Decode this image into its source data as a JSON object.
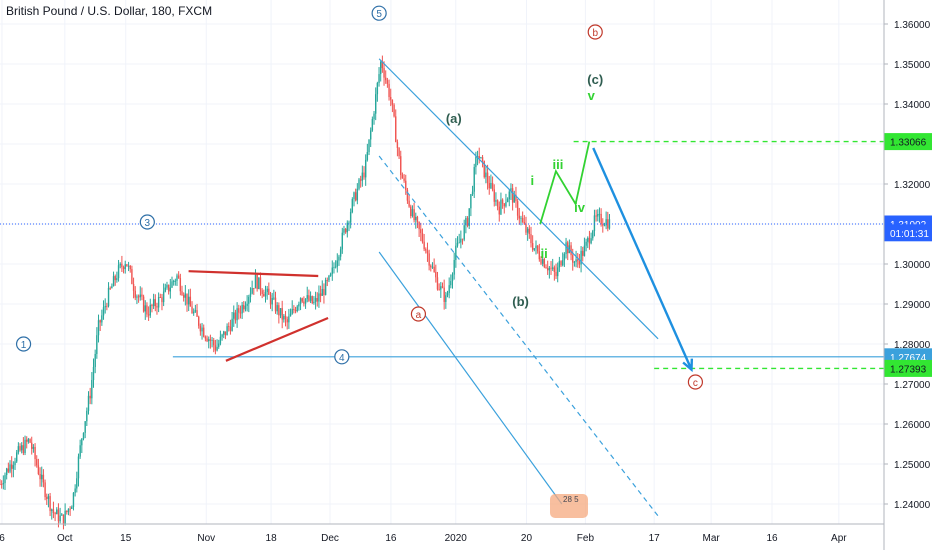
{
  "header": {
    "title": "British Pound / U.S. Dollar, 180, FXCM"
  },
  "chart_data": {
    "type": "candlestick",
    "price_axis": {
      "range": [
        1.235,
        1.366
      ],
      "ticks": [
        "1.36000",
        "1.35000",
        "1.34000",
        "1.33000",
        "1.32000",
        "1.31000",
        "1.30000",
        "1.29000",
        "1.28000",
        "1.27000",
        "1.26000",
        "1.25000",
        "1.24000"
      ]
    },
    "time_axis": {
      "labels": [
        "6",
        "Oct",
        "15",
        "Nov",
        "18",
        "Dec",
        "16",
        "2020",
        "20",
        "Feb",
        "17",
        "Mar",
        "16",
        "Apr"
      ]
    },
    "price_labels": {
      "current_price": "1.31002",
      "countdown": "01:01:31",
      "level_upper": "1.33066",
      "level_horizontal": "1.27674",
      "level_lower": "1.27393"
    },
    "price_path": [
      [
        0,
        1.245
      ],
      [
        0.3,
        1.248
      ],
      [
        0.8,
        1.252
      ],
      [
        1.5,
        1.256
      ],
      [
        2.1,
        1.246
      ],
      [
        2.7,
        1.238
      ],
      [
        3.2,
        1.236
      ],
      [
        3.7,
        1.241
      ],
      [
        4.2,
        1.258
      ],
      [
        4.6,
        1.268
      ],
      [
        5.0,
        1.284
      ],
      [
        5.5,
        1.292
      ],
      [
        6.0,
        1.298
      ],
      [
        6.4,
        1.301
      ],
      [
        6.9,
        1.293
      ],
      [
        7.5,
        1.288
      ],
      [
        8.3,
        1.292
      ],
      [
        9.0,
        1.297
      ],
      [
        9.7,
        1.289
      ],
      [
        10.4,
        1.283
      ],
      [
        11.0,
        1.279
      ],
      [
        11.6,
        1.284
      ],
      [
        12.4,
        1.29
      ],
      [
        13.0,
        1.296
      ],
      [
        13.8,
        1.291
      ],
      [
        14.6,
        1.285
      ],
      [
        15.3,
        1.292
      ],
      [
        16.0,
        1.29
      ],
      [
        16.8,
        1.296
      ],
      [
        17.4,
        1.306
      ],
      [
        18.0,
        1.316
      ],
      [
        18.6,
        1.324
      ],
      [
        19.4,
        1.351
      ],
      [
        19.9,
        1.341
      ],
      [
        20.4,
        1.323
      ],
      [
        21.0,
        1.312
      ],
      [
        21.6,
        1.305
      ],
      [
        22.2,
        1.296
      ],
      [
        22.7,
        1.291
      ],
      [
        23.2,
        1.303
      ],
      [
        23.8,
        1.311
      ],
      [
        24.3,
        1.328
      ],
      [
        24.8,
        1.321
      ],
      [
        25.4,
        1.314
      ],
      [
        26.0,
        1.318
      ],
      [
        26.6,
        1.31
      ],
      [
        27.2,
        1.304
      ],
      [
        27.8,
        1.3
      ],
      [
        28.3,
        1.297
      ],
      [
        28.8,
        1.305
      ],
      [
        29.3,
        1.3
      ],
      [
        29.8,
        1.304
      ],
      [
        30.3,
        1.311
      ],
      [
        30.8,
        1.311
      ],
      [
        31.1,
        1.31
      ]
    ],
    "annotations": [
      {
        "text": "1",
        "t": 1.2,
        "p": 1.28,
        "style": "circle-blue"
      },
      {
        "text": "3",
        "t": 7.5,
        "p": 1.3105,
        "style": "circle-blue"
      },
      {
        "text": "4",
        "t": 17.4,
        "p": 1.2768,
        "style": "circle-blue"
      },
      {
        "text": "5",
        "t": 19.3,
        "p": 1.3627,
        "style": "circle-blue"
      },
      {
        "text": "a",
        "t": 21.3,
        "p": 1.2875,
        "style": "circle-red"
      },
      {
        "text": "b",
        "t": 30.3,
        "p": 1.358,
        "style": "circle-red"
      },
      {
        "text": "c",
        "t": 35.4,
        "p": 1.2705,
        "style": "circle-red"
      },
      {
        "text": "(a)",
        "t": 23.1,
        "p": 1.3362,
        "style": "text-darkgreen"
      },
      {
        "text": "(b)",
        "t": 26.5,
        "p": 1.2905,
        "style": "text-darkgreen"
      },
      {
        "text": "(c)",
        "t": 30.3,
        "p": 1.346,
        "style": "text-darkgreen"
      },
      {
        "text": "i",
        "t": 27.1,
        "p": 1.3208,
        "style": "text-green"
      },
      {
        "text": "ii",
        "t": 27.7,
        "p": 1.3025,
        "style": "text-green"
      },
      {
        "text": "iii",
        "t": 28.4,
        "p": 1.3248,
        "style": "text-green"
      },
      {
        "text": "iv",
        "t": 29.5,
        "p": 1.314,
        "style": "text-green"
      },
      {
        "text": "v",
        "t": 30.1,
        "p": 1.342,
        "style": "text-green"
      }
    ],
    "lines": [
      {
        "name": "channel-upper",
        "from": [
          19.3,
          1.3513
        ],
        "to": [
          33.5,
          1.2813
        ],
        "style": "solid-blue"
      },
      {
        "name": "channel-middle",
        "from": [
          19.3,
          1.327
        ],
        "to": [
          33.5,
          1.237
        ],
        "style": "dashed-blue"
      },
      {
        "name": "channel-lower",
        "from": [
          19.3,
          1.303
        ],
        "to": [
          28.6,
          1.24
        ],
        "style": "solid-blue"
      },
      {
        "name": "wave-4-horizontal",
        "from": [
          8.8,
          1.2768
        ],
        "to": [
          45,
          1.2768
        ],
        "style": "solid-blue"
      },
      {
        "name": "triangle-top",
        "from": [
          9.6,
          1.2982
        ],
        "to": [
          16.2,
          1.297
        ],
        "style": "solid-red"
      },
      {
        "name": "triangle-bottom",
        "from": [
          11.5,
          1.2758
        ],
        "to": [
          16.7,
          1.2865
        ],
        "style": "solid-red"
      },
      {
        "name": "level-upper",
        "from": [
          29.2,
          1.3306
        ],
        "to": [
          45,
          1.3306
        ],
        "style": "dashed-green"
      },
      {
        "name": "level-lower",
        "from": [
          33.3,
          1.2739
        ],
        "to": [
          45,
          1.2739
        ],
        "style": "dashed-green"
      },
      {
        "name": "current-price",
        "from": [
          0,
          1.31
        ],
        "to": [
          45,
          1.31
        ],
        "style": "dotted-blue"
      }
    ],
    "projection_path": [
      [
        27.5,
        1.31
      ],
      [
        28.3,
        1.3232
      ],
      [
        29.3,
        1.315
      ],
      [
        30.0,
        1.3306
      ]
    ],
    "projection_arrow": {
      "from": [
        30.2,
        1.329
      ],
      "to": [
        35.2,
        1.2736
      ]
    }
  }
}
